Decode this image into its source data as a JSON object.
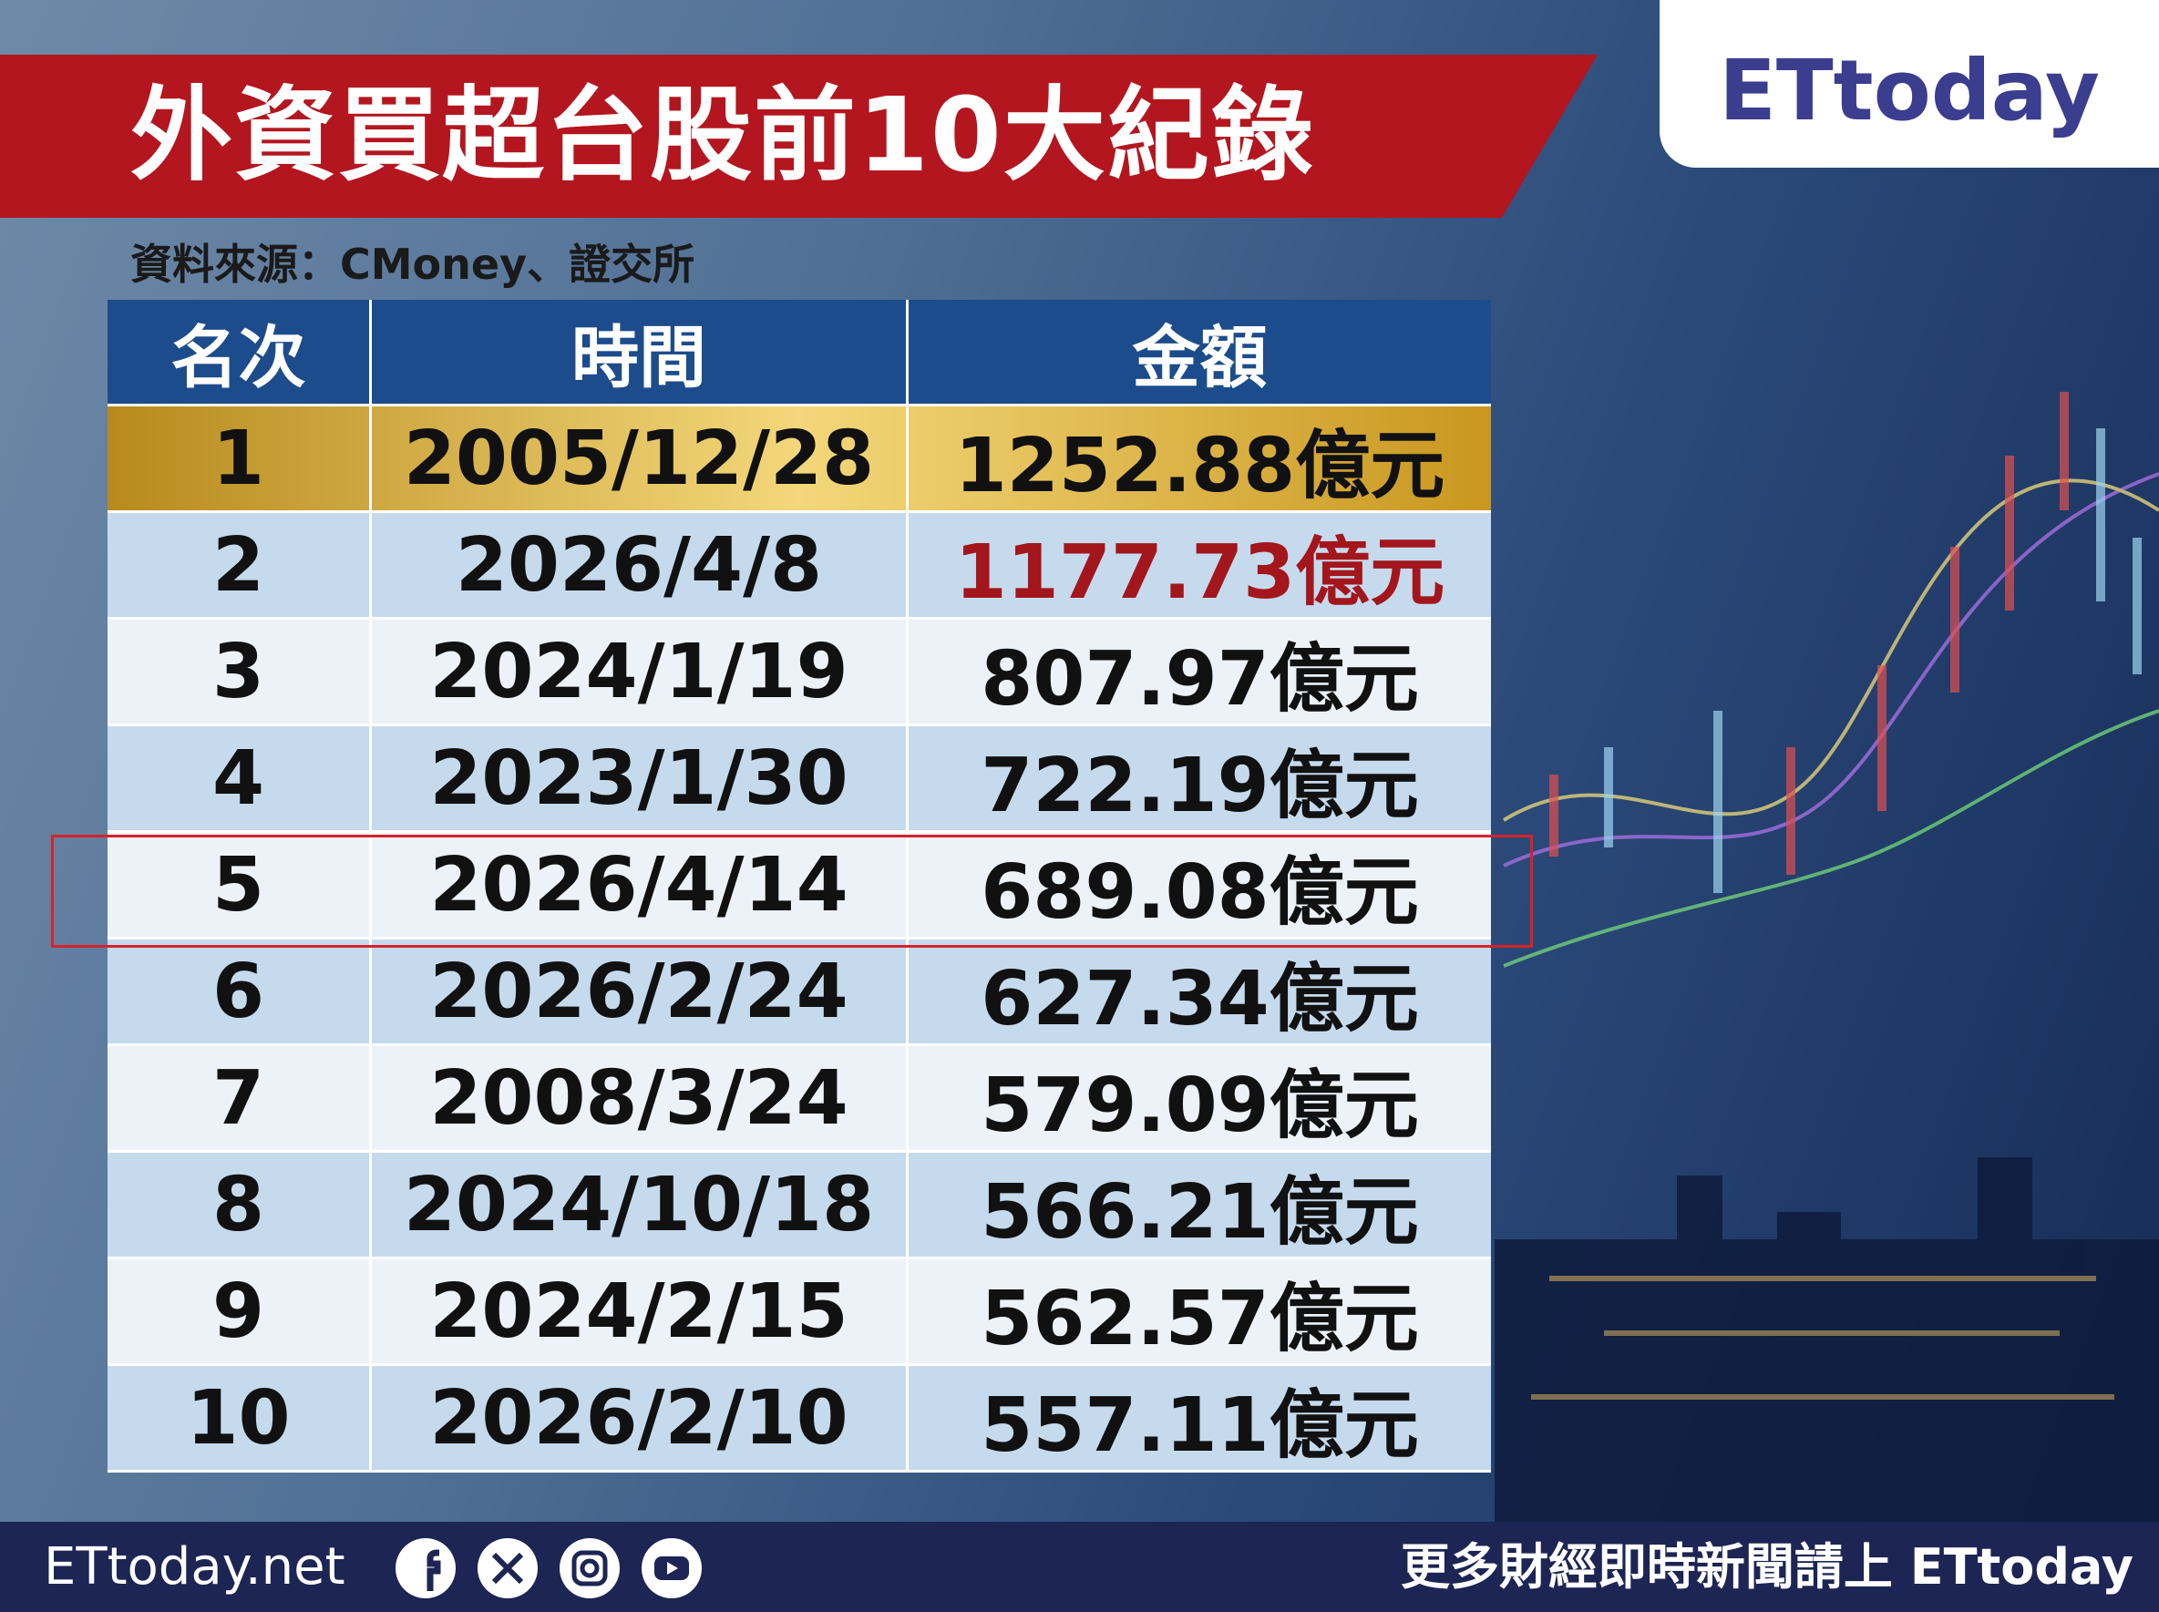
{
  "header": {
    "title": "外資買超台股前10大紀錄",
    "source": "資料來源：CMoney、證交所",
    "logo": "ETtoday"
  },
  "table": {
    "headers": [
      "名次",
      "時間",
      "金額"
    ],
    "rows": [
      [
        "1",
        "2005/12/28",
        "1252.88億元"
      ],
      [
        "2",
        "2026/4/8",
        "1177.73億元"
      ],
      [
        "3",
        "2024/1/19",
        "807.97億元"
      ],
      [
        "4",
        "2023/1/30",
        "722.19億元"
      ],
      [
        "5",
        "2026/4/14",
        "689.08億元"
      ],
      [
        "6",
        "2026/2/24",
        "627.34億元"
      ],
      [
        "7",
        "2008/3/24",
        "579.09億元"
      ],
      [
        "8",
        "2024/10/18",
        "566.21億元"
      ],
      [
        "9",
        "2024/2/15",
        "562.57億元"
      ],
      [
        "10",
        "2026/2/10",
        "557.11億元"
      ]
    ]
  },
  "footer": {
    "site": "ETtoday.net",
    "promo": "更多財經即時新聞請上 ETtoday"
  }
}
